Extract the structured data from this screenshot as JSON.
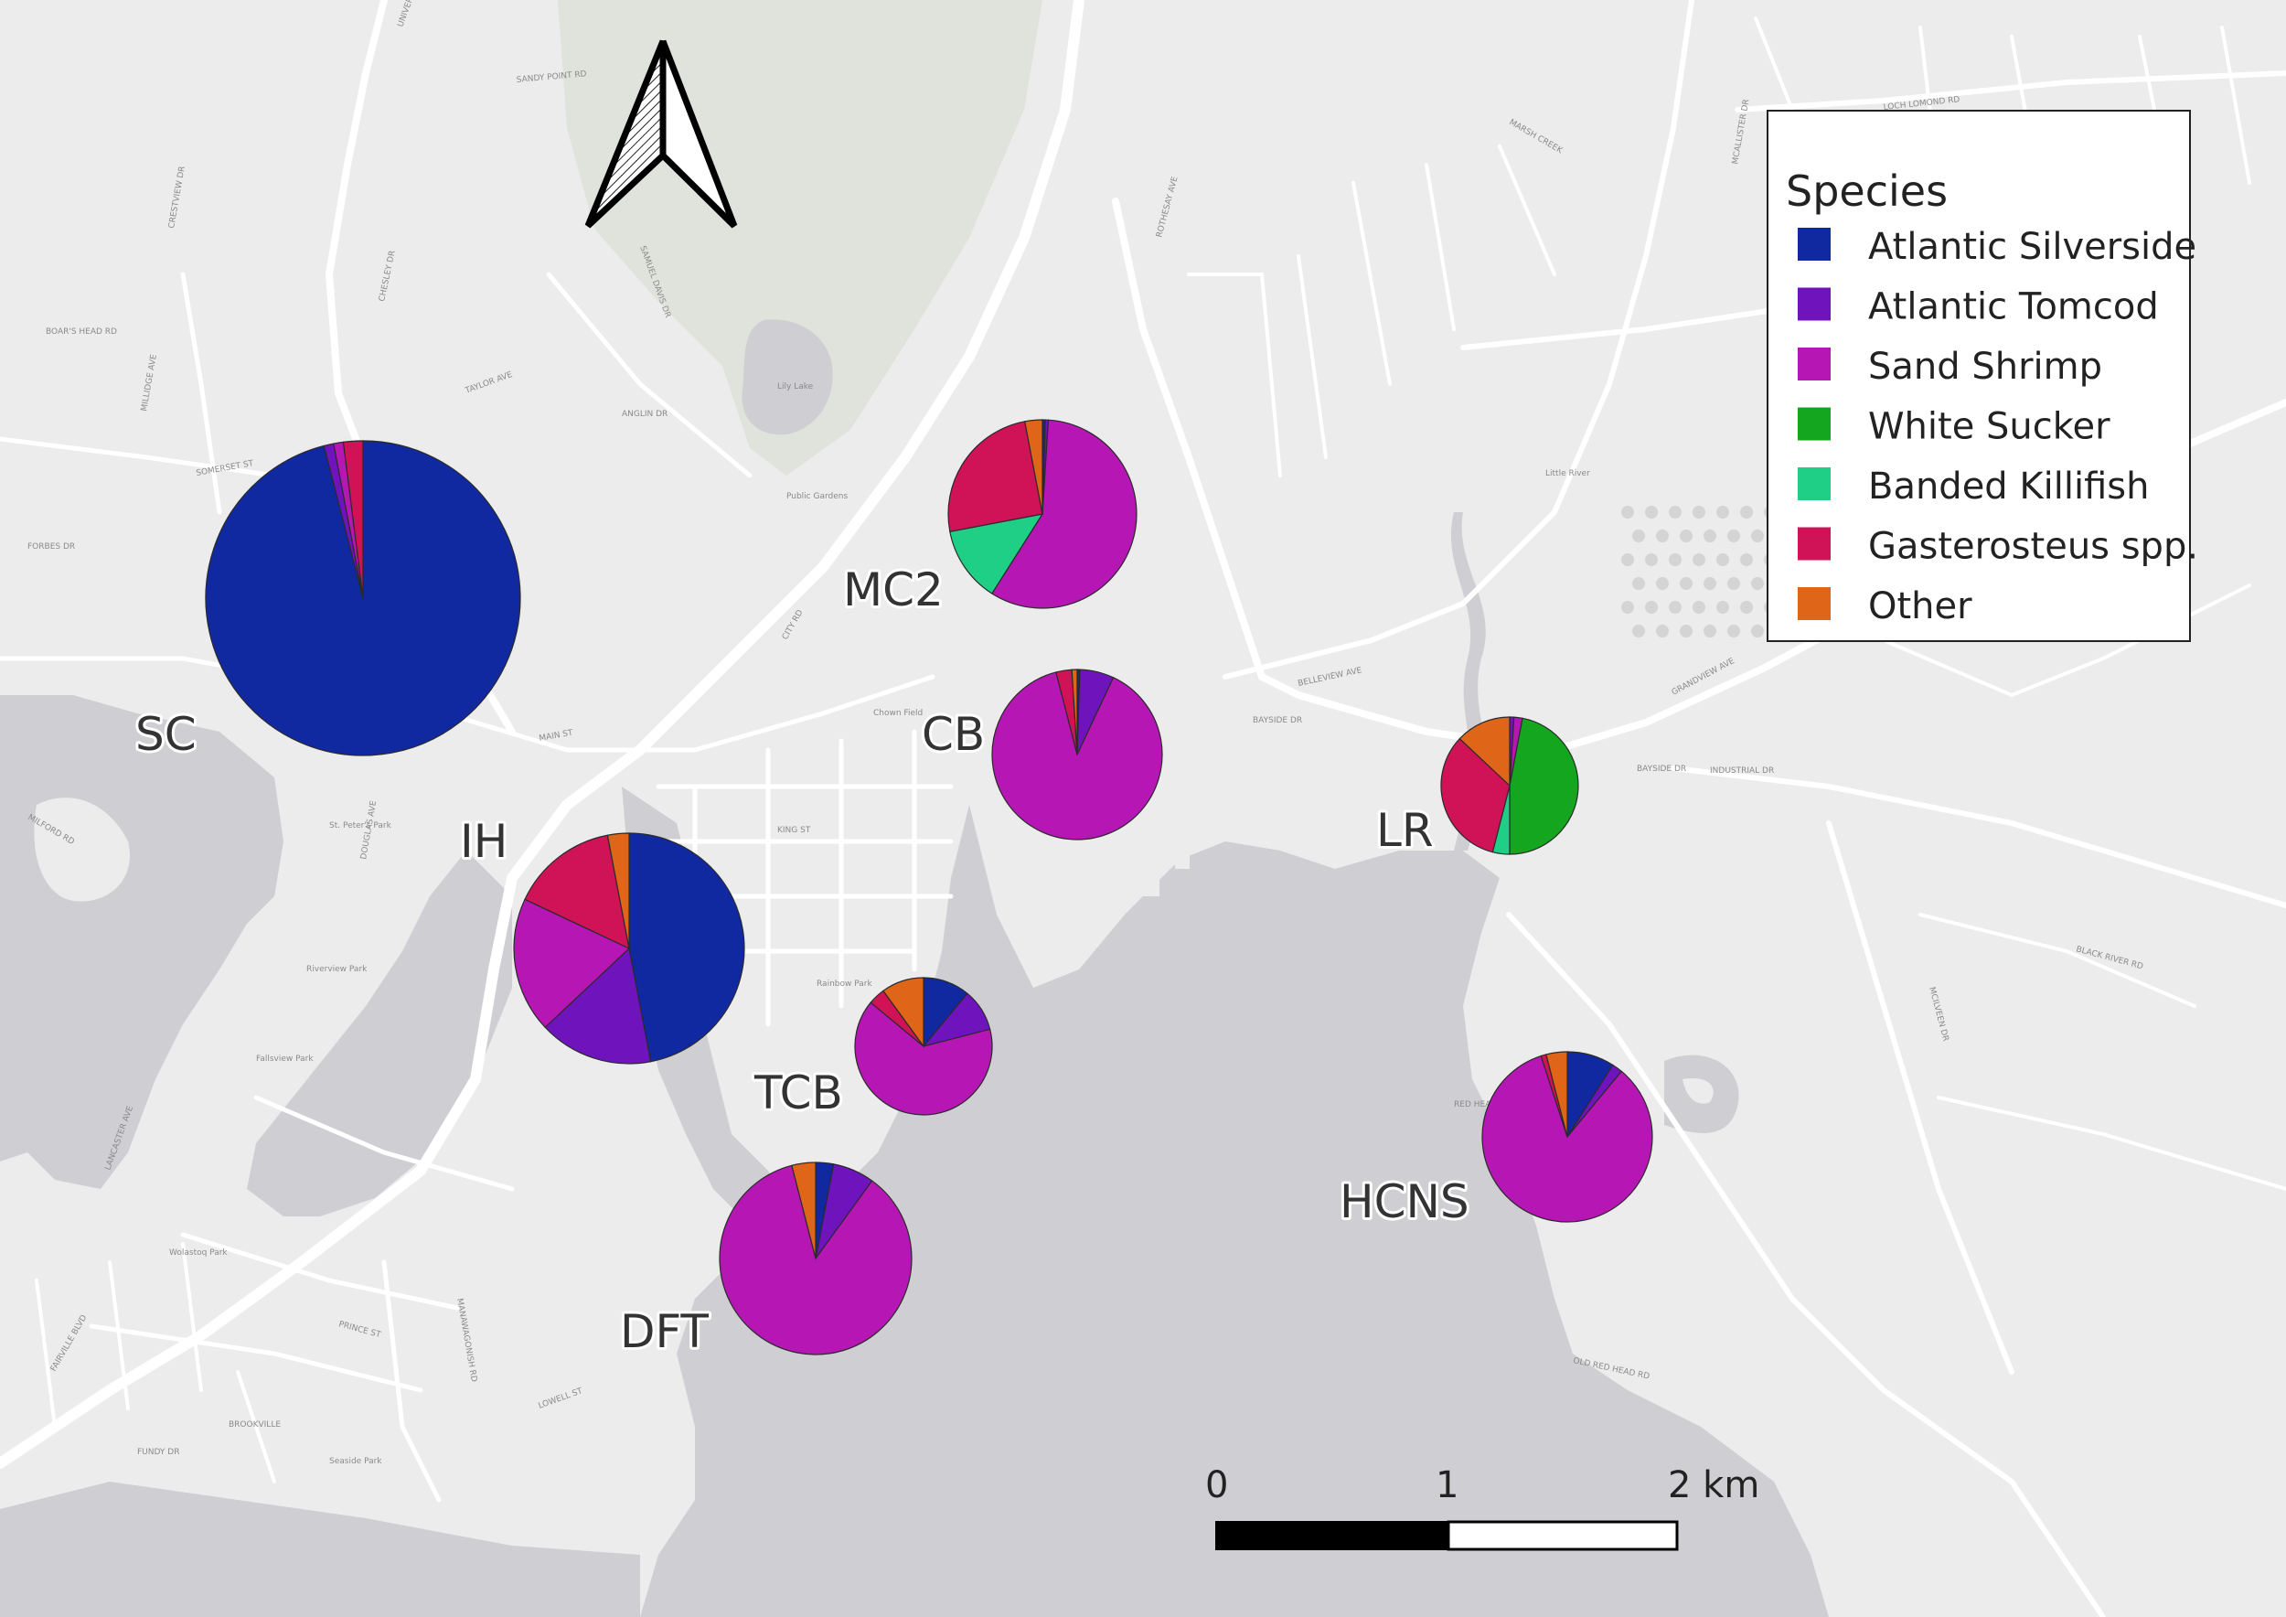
{
  "colors": {
    "land": "#ececec",
    "water": "#cfcfd3",
    "road": "#ffffff",
    "park": "#dfe3dc",
    "outline": "#2a2a2a",
    "Atlantic Silverside": "#1029a0",
    "Atlantic Tomcod": "#6f14bd",
    "Sand Shrimp": "#b617b4",
    "White Sucker": "#14a61f",
    "Banded Killifish": "#1fcf85",
    "Gasterosteus spp.": "#d01257",
    "Other": "#df6518"
  },
  "map": {
    "north_arrow_icon": "north-arrow-icon",
    "place_labels": [
      "Lily Lake",
      "Public Gardens",
      "Chown Field",
      "Rainbow Park",
      "St. Peter's Park",
      "Riverview Park",
      "Wolastoq Park",
      "Seaside Park",
      "Fallsview Park",
      "Little River"
    ],
    "street_labels": [
      "SOMERSET ST",
      "MAIN ST",
      "KING ST",
      "CITY RD",
      "BAYSIDE DR",
      "GRANDVIEW AVE",
      "ROTHESAY AVE",
      "LOCH LOMOND RD",
      "BELLEVIEW AVE",
      "BAYSIDE DR",
      "INDUSTRIAL DR",
      "MCILVEEN DR",
      "RED HEAD RD",
      "OLD RED HEAD RD",
      "BLACK RIVER RD",
      "DOUGLAS AVE",
      "CHESLEY DR",
      "MILLIDGE AVE",
      "FAIRVILLE BLVD",
      "MANAWAGONISH RD",
      "PRINCE ST",
      "LOWELL ST",
      "SANDY POINT RD",
      "SAMUEL DAVIS DR",
      "CRESTVIEW DR",
      "TAYLOR AVE",
      "ANGLIN DR",
      "FORBES DR",
      "MCALLISTER DR",
      "BOAR'S HEAD RD",
      "MILFORD RD",
      "UNIVERSITY AVE",
      "FUNDY DR",
      "LANCASTER AVE",
      "BROOKVILLE",
      "MARSH CREEK"
    ]
  },
  "chart_data": {
    "type": "pie",
    "title": "",
    "legend": {
      "title": "Species",
      "placement": "top-right",
      "entries": [
        "Atlantic Silverside",
        "Atlantic Tomcod",
        "Sand Shrimp",
        "White Sucker",
        "Banded Killifish",
        "Gasterosteus spp.",
        "Other"
      ]
    },
    "sites": [
      {
        "name": "SC",
        "relative_size": 1.0,
        "slices": [
          {
            "species": "Atlantic Silverside",
            "value": 96.0
          },
          {
            "species": "Atlantic Tomcod",
            "value": 1.0
          },
          {
            "species": "Sand Shrimp",
            "value": 1.0
          },
          {
            "species": "Gasterosteus spp.",
            "value": 2.0
          }
        ]
      },
      {
        "name": "MC2",
        "relative_size": 0.6,
        "slices": [
          {
            "species": "Atlantic Silverside",
            "value": 0.5
          },
          {
            "species": "Atlantic Tomcod",
            "value": 0.5
          },
          {
            "species": "Sand Shrimp",
            "value": 58.0
          },
          {
            "species": "Banded Killifish",
            "value": 13.0
          },
          {
            "species": "Gasterosteus spp.",
            "value": 25.0
          },
          {
            "species": "Other",
            "value": 3.0
          }
        ]
      },
      {
        "name": "CB",
        "relative_size": 0.54,
        "slices": [
          {
            "species": "Atlantic Silverside",
            "value": 0.5
          },
          {
            "species": "Atlantic Tomcod",
            "value": 6.5
          },
          {
            "species": "Sand Shrimp",
            "value": 89.0
          },
          {
            "species": "Gasterosteus spp.",
            "value": 3.0
          },
          {
            "species": "Other",
            "value": 1.0
          }
        ]
      },
      {
        "name": "LR",
        "relative_size": 0.44,
        "slices": [
          {
            "species": "Atlantic Tomcod",
            "value": 1.0
          },
          {
            "species": "Sand Shrimp",
            "value": 2.0
          },
          {
            "species": "White Sucker",
            "value": 47.0
          },
          {
            "species": "Banded Killifish",
            "value": 4.0
          },
          {
            "species": "Gasterosteus spp.",
            "value": 33.0
          },
          {
            "species": "Other",
            "value": 13.0
          }
        ]
      },
      {
        "name": "IH",
        "relative_size": 0.73,
        "slices": [
          {
            "species": "Atlantic Silverside",
            "value": 47.0
          },
          {
            "species": "Atlantic Tomcod",
            "value": 16.0
          },
          {
            "species": "Sand Shrimp",
            "value": 19.0
          },
          {
            "species": "Gasterosteus spp.",
            "value": 15.0
          },
          {
            "species": "Other",
            "value": 3.0
          }
        ]
      },
      {
        "name": "TCB",
        "relative_size": 0.44,
        "slices": [
          {
            "species": "Atlantic Silverside",
            "value": 11.0
          },
          {
            "species": "Atlantic Tomcod",
            "value": 10.0
          },
          {
            "species": "Sand Shrimp",
            "value": 65.0
          },
          {
            "species": "Gasterosteus spp.",
            "value": 4.0
          },
          {
            "species": "Other",
            "value": 10.0
          }
        ]
      },
      {
        "name": "DFT",
        "relative_size": 0.61,
        "slices": [
          {
            "species": "Atlantic Silverside",
            "value": 3.0
          },
          {
            "species": "Atlantic Tomcod",
            "value": 7.0
          },
          {
            "species": "Sand Shrimp",
            "value": 86.0
          },
          {
            "species": "Other",
            "value": 4.0
          }
        ]
      },
      {
        "name": "HCNS",
        "relative_size": 0.54,
        "slices": [
          {
            "species": "Atlantic Silverside",
            "value": 9.0
          },
          {
            "species": "Atlantic Tomcod",
            "value": 2.0
          },
          {
            "species": "Sand Shrimp",
            "value": 84.0
          },
          {
            "species": "Gasterosteus spp.",
            "value": 1.0
          },
          {
            "species": "Other",
            "value": 4.0
          }
        ]
      }
    ]
  },
  "scale_bar": {
    "labels": [
      "0",
      "1",
      "2 km"
    ],
    "unit": "km"
  }
}
